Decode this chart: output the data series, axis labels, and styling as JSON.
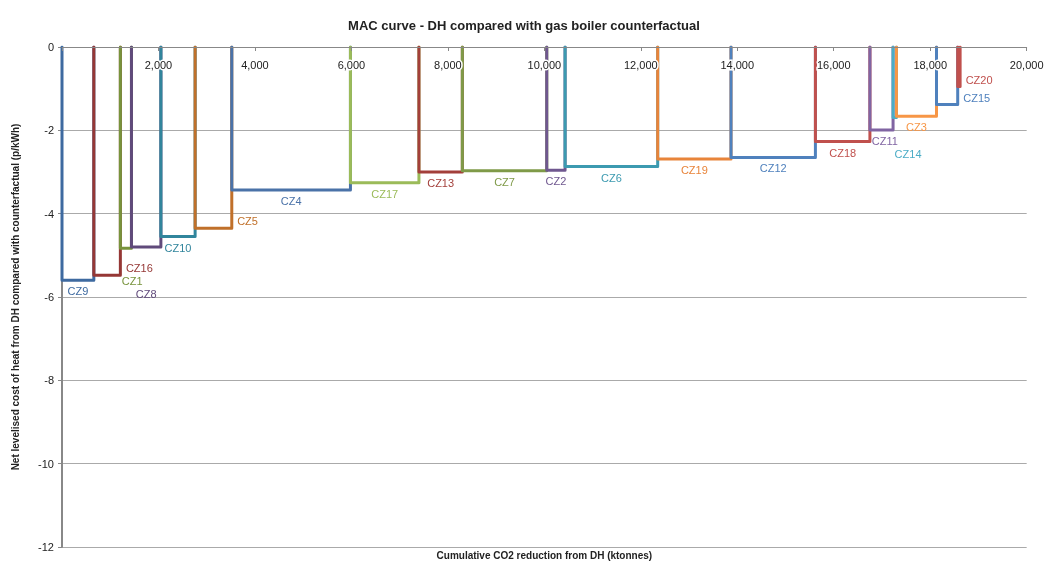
{
  "chart_data": {
    "type": "line",
    "title": "MAC curve - DH compared with gas boiler counterfactual",
    "xlabel": "Cumulative CO2 reduction from DH (ktonnes)",
    "ylabel": "Net levelised cost of heat from DH compared with counterfactual (p/kWh)",
    "xlim": [
      0,
      20000
    ],
    "xticks": [
      {
        "value": 0,
        "label": null
      },
      {
        "value": 2000,
        "label": "2,000"
      },
      {
        "value": 4000,
        "label": "4,000"
      },
      {
        "value": 6000,
        "label": "6,000"
      },
      {
        "value": 8000,
        "label": "8,000"
      },
      {
        "value": 10000,
        "label": "10,000"
      },
      {
        "value": 12000,
        "label": "12,000"
      },
      {
        "value": 14000,
        "label": "14,000"
      },
      {
        "value": 16000,
        "label": "16,000"
      },
      {
        "value": 18000,
        "label": "18,000"
      },
      {
        "value": 20000,
        "label": "20,000"
      }
    ],
    "ylim": [
      -12,
      0
    ],
    "yticks": [
      -12,
      -10,
      -8,
      -6,
      -4,
      -2,
      0
    ],
    "grid": "y",
    "marker": "none",
    "line_style": "solid",
    "series": [
      {
        "name": "CZ9",
        "color": "#3e6aa0",
        "x": [
          0,
          0,
          660,
          660
        ],
        "values": [
          0,
          -5.6,
          -5.6,
          0
        ]
      },
      {
        "name": "CZ16",
        "color": "#953735",
        "x": [
          660,
          660,
          1210,
          1210
        ],
        "values": [
          0,
          -5.48,
          -5.48,
          0
        ]
      },
      {
        "name": "CZ1",
        "color": "#77933c",
        "x": [
          1210,
          1210,
          1440,
          1440
        ],
        "values": [
          0,
          -4.83,
          -4.83,
          0
        ]
      },
      {
        "name": "CZ8",
        "color": "#604a7b",
        "x": [
          1440,
          1440,
          2050,
          2050
        ],
        "values": [
          0,
          -4.8,
          -4.8,
          0
        ]
      },
      {
        "name": "CZ10",
        "color": "#31859c",
        "x": [
          2050,
          2050,
          2760,
          2760
        ],
        "values": [
          0,
          -4.55,
          -4.55,
          0
        ]
      },
      {
        "name": "CZ5",
        "color": "#c0702a",
        "x": [
          2760,
          2760,
          3520,
          3520
        ],
        "values": [
          0,
          -4.35,
          -4.35,
          0
        ]
      },
      {
        "name": "CZ4",
        "color": "#4a72a8",
        "x": [
          3520,
          3520,
          5980,
          5980
        ],
        "values": [
          0,
          -3.43,
          -3.43,
          0
        ]
      },
      {
        "name": "CZ17",
        "color": "#9bbb59",
        "x": [
          5980,
          5980,
          7400,
          7400
        ],
        "values": [
          0,
          -3.26,
          -3.26,
          0
        ]
      },
      {
        "name": "CZ13",
        "color": "#a33f3a",
        "x": [
          7400,
          7400,
          8300,
          8300
        ],
        "values": [
          0,
          -3.0,
          -3.0,
          0
        ]
      },
      {
        "name": "CZ7",
        "color": "#7f9a48",
        "x": [
          8300,
          8300,
          10050,
          10050
        ],
        "values": [
          0,
          -2.97,
          -2.97,
          0
        ]
      },
      {
        "name": "CZ2",
        "color": "#6f578f",
        "x": [
          10050,
          10050,
          10430,
          10430
        ],
        "values": [
          0,
          -2.96,
          -2.96,
          0
        ]
      },
      {
        "name": "CZ6",
        "color": "#3c9ab0",
        "x": [
          10430,
          10430,
          12350,
          12350
        ],
        "values": [
          0,
          -2.87,
          -2.87,
          0
        ]
      },
      {
        "name": "CZ19",
        "color": "#e8843a",
        "x": [
          12350,
          12350,
          13870,
          13870
        ],
        "values": [
          0,
          -2.69,
          -2.69,
          0
        ]
      },
      {
        "name": "CZ12",
        "color": "#4f81bd",
        "x": [
          13870,
          13870,
          15620,
          15620
        ],
        "values": [
          0,
          -2.65,
          -2.65,
          0
        ]
      },
      {
        "name": "CZ18",
        "color": "#c0504d",
        "x": [
          15620,
          15620,
          16750,
          16750
        ],
        "values": [
          0,
          -2.27,
          -2.27,
          0
        ]
      },
      {
        "name": "CZ11",
        "color": "#8064a2",
        "x": [
          16750,
          16750,
          17230,
          17230
        ],
        "values": [
          0,
          -1.99,
          -1.99,
          0
        ]
      },
      {
        "name": "CZ14",
        "color": "#4bacc6",
        "x": [
          17230,
          17230,
          17300,
          17300
        ],
        "values": [
          0,
          -1.69,
          -1.69,
          0
        ]
      },
      {
        "name": "CZ3",
        "color": "#f79646",
        "x": [
          17300,
          17300,
          18130,
          18130
        ],
        "values": [
          0,
          -1.66,
          -1.66,
          0
        ]
      },
      {
        "name": "CZ15",
        "color": "#4f81bd",
        "x": [
          18130,
          18130,
          18570,
          18570
        ],
        "values": [
          0,
          -1.38,
          -1.38,
          0
        ]
      },
      {
        "name": "CZ20",
        "color": "#c0504d",
        "x": [
          18570,
          18570,
          18620,
          18620
        ],
        "values": [
          0,
          -0.95,
          -0.95,
          0
        ]
      }
    ]
  }
}
